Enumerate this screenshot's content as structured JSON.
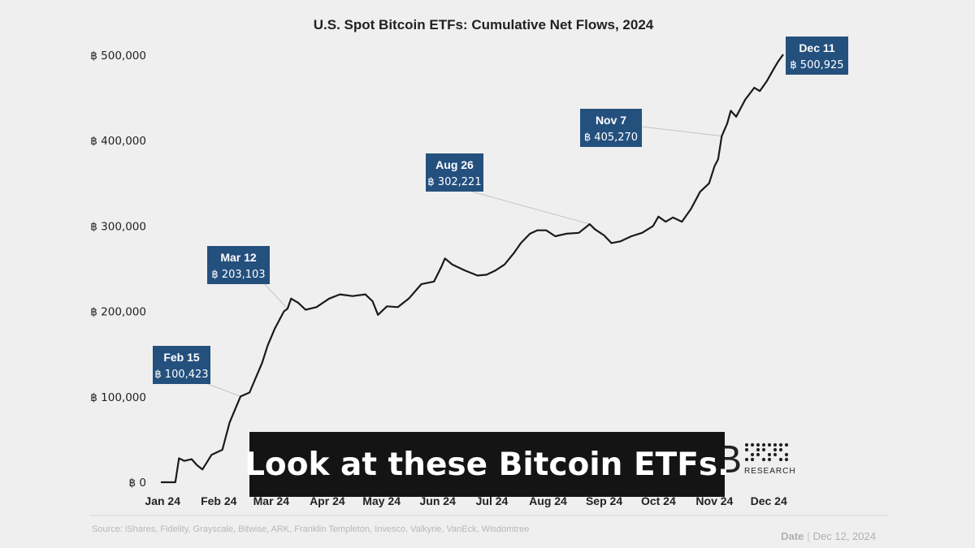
{
  "chart_data": {
    "type": "line",
    "title": "U.S. Spot Bitcoin ETFs: Cumulative Net Flows, 2024",
    "y_ticks": [
      "฿ 500,000",
      "฿ 400,000",
      "฿ 300,000",
      "฿ 200,000",
      "฿ 100,000",
      "฿ 0"
    ],
    "x_ticks": [
      "Jan 24",
      "Feb 24",
      "Mar 24",
      "Apr 24",
      "May 24",
      "Jun 24",
      "Jul 24",
      "Aug 24",
      "Sep 24",
      "Oct 24",
      "Nov 24",
      "Dec 24"
    ],
    "ylim": [
      0,
      500000
    ],
    "grid": false,
    "series": [
      {
        "points": [
          [
            "2024-01-02",
            0
          ],
          [
            "2024-01-10",
            0
          ],
          [
            "2024-01-12",
            28000
          ],
          [
            "2024-01-15",
            25000
          ],
          [
            "2024-01-19",
            27000
          ],
          [
            "2024-01-22",
            20000
          ],
          [
            "2024-01-25",
            15000
          ],
          [
            "2024-01-30",
            32000
          ],
          [
            "2024-02-05",
            38000
          ],
          [
            "2024-02-09",
            70000
          ],
          [
            "2024-02-15",
            100423
          ],
          [
            "2024-02-20",
            105000
          ],
          [
            "2024-02-27",
            140000
          ],
          [
            "2024-03-01",
            160000
          ],
          [
            "2024-03-05",
            180000
          ],
          [
            "2024-03-10",
            200000
          ],
          [
            "2024-03-12",
            203103
          ],
          [
            "2024-03-14",
            215000
          ],
          [
            "2024-03-18",
            210000
          ],
          [
            "2024-03-22",
            202000
          ],
          [
            "2024-03-28",
            205000
          ],
          [
            "2024-04-04",
            215000
          ],
          [
            "2024-04-10",
            220000
          ],
          [
            "2024-04-17",
            218000
          ],
          [
            "2024-04-24",
            220000
          ],
          [
            "2024-04-28",
            212000
          ],
          [
            "2024-05-01",
            196000
          ],
          [
            "2024-05-06",
            206000
          ],
          [
            "2024-05-12",
            205000
          ],
          [
            "2024-05-18",
            215000
          ],
          [
            "2024-05-25",
            232000
          ],
          [
            "2024-06-01",
            235000
          ],
          [
            "2024-06-05",
            252000
          ],
          [
            "2024-06-07",
            262000
          ],
          [
            "2024-06-11",
            255000
          ],
          [
            "2024-06-18",
            248000
          ],
          [
            "2024-06-25",
            242000
          ],
          [
            "2024-06-30",
            243000
          ],
          [
            "2024-07-05",
            248000
          ],
          [
            "2024-07-10",
            255000
          ],
          [
            "2024-07-15",
            268000
          ],
          [
            "2024-07-19",
            280000
          ],
          [
            "2024-07-24",
            291000
          ],
          [
            "2024-07-28",
            295000
          ],
          [
            "2024-08-02",
            295000
          ],
          [
            "2024-08-07",
            288000
          ],
          [
            "2024-08-13",
            291000
          ],
          [
            "2024-08-20",
            292000
          ],
          [
            "2024-08-26",
            302221
          ],
          [
            "2024-08-29",
            296000
          ],
          [
            "2024-09-03",
            289000
          ],
          [
            "2024-09-07",
            280000
          ],
          [
            "2024-09-12",
            282000
          ],
          [
            "2024-09-18",
            288000
          ],
          [
            "2024-09-24",
            292000
          ],
          [
            "2024-09-30",
            300000
          ],
          [
            "2024-10-03",
            311000
          ],
          [
            "2024-10-07",
            305000
          ],
          [
            "2024-10-11",
            310000
          ],
          [
            "2024-10-16",
            305000
          ],
          [
            "2024-10-21",
            320000
          ],
          [
            "2024-10-26",
            340000
          ],
          [
            "2024-10-31",
            350000
          ],
          [
            "2024-11-03",
            370000
          ],
          [
            "2024-11-05",
            378000
          ],
          [
            "2024-11-07",
            405270
          ],
          [
            "2024-11-10",
            420000
          ],
          [
            "2024-11-12",
            435000
          ],
          [
            "2024-11-15",
            428000
          ],
          [
            "2024-11-20",
            448000
          ],
          [
            "2024-11-25",
            462000
          ],
          [
            "2024-11-28",
            458000
          ],
          [
            "2024-12-02",
            470000
          ],
          [
            "2024-12-06",
            485000
          ],
          [
            "2024-12-08",
            492000
          ],
          [
            "2024-12-11",
            500925
          ]
        ]
      }
    ],
    "annotations": [
      {
        "date": "Feb 15",
        "value": "฿ 100,423"
      },
      {
        "date": "Mar 12",
        "value": "฿ 203,103"
      },
      {
        "date": "Aug 26",
        "value": "฿ 302,221"
      },
      {
        "date": "Nov 7",
        "value": "฿ 405,270"
      },
      {
        "date": "Dec 11",
        "value": "฿ 500,925"
      }
    ],
    "source": "Source: iShares, Fidelity, Grayscale, Bitwise, ARK, Franklin Templeton, Invesco, Valkyrie, VanEck, Wisdomtree",
    "date_label": "Date",
    "date_value": "Dec 12, 2024"
  },
  "logo": {
    "letter": "B",
    "text": "RESEARCH"
  },
  "caption": "Look at these Bitcoin ETFs.",
  "colors": {
    "line": "#1a1a1a",
    "annotation_box": "#24507e",
    "background": "#efefef"
  }
}
